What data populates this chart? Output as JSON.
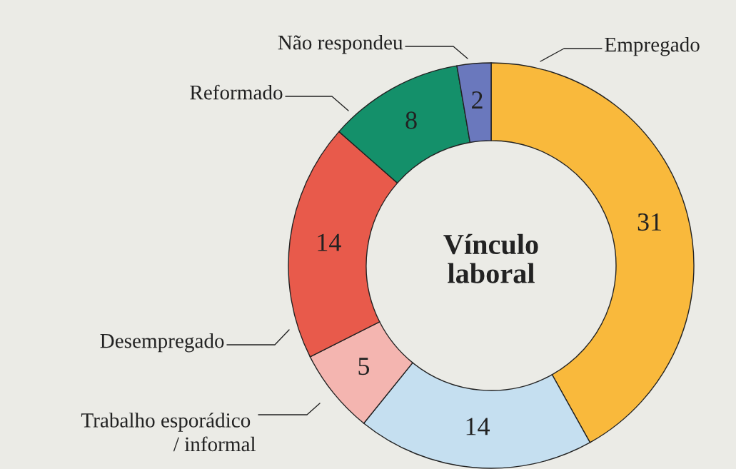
{
  "chart_data": {
    "type": "donut",
    "title": "Vínculo laboral",
    "categories": [
      "Empregado",
      null,
      "Trabalho esporádico / informal",
      "Desempregado",
      "Reformado",
      "Não respondeu"
    ],
    "values": [
      31,
      14,
      5,
      14,
      8,
      2
    ],
    "colors": [
      "#f9b93c",
      "#c5dff0",
      "#f4b5b0",
      "#e85a4b",
      "#14906a",
      "#6a78bd"
    ],
    "data_labels": true
  }
}
